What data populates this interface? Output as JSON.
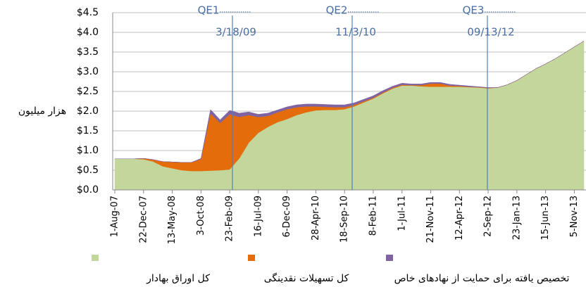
{
  "chart_data": {
    "type": "stacked_area",
    "y_label": "هزار میلیون",
    "categories": [
      "1-Aug-07",
      null,
      null,
      "22-Dec-07",
      null,
      null,
      "13-May-08",
      null,
      null,
      "3-Oct-08",
      null,
      null,
      "23-Feb-09",
      null,
      null,
      "16-Jul-09",
      null,
      null,
      "6-Dec-09",
      null,
      null,
      "28-Apr-10",
      null,
      null,
      "18-Sep-10",
      null,
      null,
      "8-Feb-11",
      null,
      null,
      "1-Jul-11",
      null,
      null,
      "21-Nov-11",
      null,
      null,
      "12-Apr-12",
      null,
      null,
      "2-Sep-12",
      null,
      null,
      "23-Jan-13",
      null,
      null,
      "15-Jun-13",
      null,
      null,
      "5-Nov-13",
      null
    ],
    "series": [
      {
        "name": "كل اوراق بهادار",
        "color": "#c3d69b",
        "values": [
          0.79,
          0.79,
          0.79,
          0.78,
          0.72,
          0.6,
          0.55,
          0.5,
          0.48,
          0.48,
          0.49,
          0.5,
          0.52,
          0.8,
          1.2,
          1.45,
          1.6,
          1.72,
          1.8,
          1.9,
          1.97,
          2.02,
          2.03,
          2.03,
          2.05,
          2.12,
          2.22,
          2.32,
          2.45,
          2.57,
          2.65,
          2.65,
          2.63,
          2.62,
          2.62,
          2.62,
          2.62,
          2.61,
          2.6,
          2.58,
          2.6,
          2.67,
          2.78,
          2.93,
          3.08,
          3.2,
          3.33,
          3.48,
          3.63,
          3.78
        ]
      },
      {
        "name": "كل تسهيلات نقدينگی",
        "color": "#e46c0a",
        "values": [
          0,
          0,
          0,
          0.02,
          0.05,
          0.12,
          0.16,
          0.2,
          0.22,
          0.3,
          1.45,
          1.2,
          1.4,
          1.05,
          0.7,
          0.4,
          0.28,
          0.25,
          0.25,
          0.2,
          0.15,
          0.1,
          0.08,
          0.07,
          0.05,
          0.04,
          0.03,
          0.02,
          0.02,
          0.02,
          0.02,
          0.01,
          0.03,
          0.08,
          0.08,
          0.03,
          0.02,
          0.01,
          0.01,
          0.01,
          0,
          0,
          0,
          0,
          0,
          0,
          0,
          0,
          0,
          0
        ]
      },
      {
        "name": "تخصیص یافته برای حمایت از نهادهای خاص",
        "color": "#8064a2",
        "values": [
          0,
          0,
          0,
          0,
          0,
          0,
          0,
          0,
          0,
          0.02,
          0.1,
          0.08,
          0.1,
          0.1,
          0.08,
          0.07,
          0.07,
          0.06,
          0.06,
          0.06,
          0.06,
          0.06,
          0.06,
          0.06,
          0.06,
          0.05,
          0.05,
          0.05,
          0.05,
          0.04,
          0.04,
          0.03,
          0.03,
          0.03,
          0.03,
          0.03,
          0.02,
          0.02,
          0.01,
          0.01,
          0,
          0,
          0,
          0,
          0,
          0,
          0,
          0,
          0,
          0
        ]
      }
    ],
    "ylim": [
      0,
      4.5
    ],
    "yticks": [
      {
        "value": 0,
        "label": "$0.0"
      },
      {
        "value": 0.5,
        "label": "$0.5"
      },
      {
        "value": 1,
        "label": "$1.0"
      },
      {
        "value": 1.5,
        "label": "$1.5"
      },
      {
        "value": 2,
        "label": "$2.0"
      },
      {
        "value": 2.5,
        "label": "$2.5"
      },
      {
        "value": 3,
        "label": "$3.0"
      },
      {
        "value": 3.5,
        "label": "$3.5"
      },
      {
        "value": 4,
        "label": "$4.0"
      },
      {
        "value": 4.5,
        "label": "$4.5"
      }
    ],
    "grid": true,
    "annotations": [
      {
        "label": "QE1",
        "date": "3/18/09"
      },
      {
        "label": "QE2",
        "date": "11/3/10"
      },
      {
        "label": "QE3",
        "date": "09/13/12"
      }
    ]
  }
}
